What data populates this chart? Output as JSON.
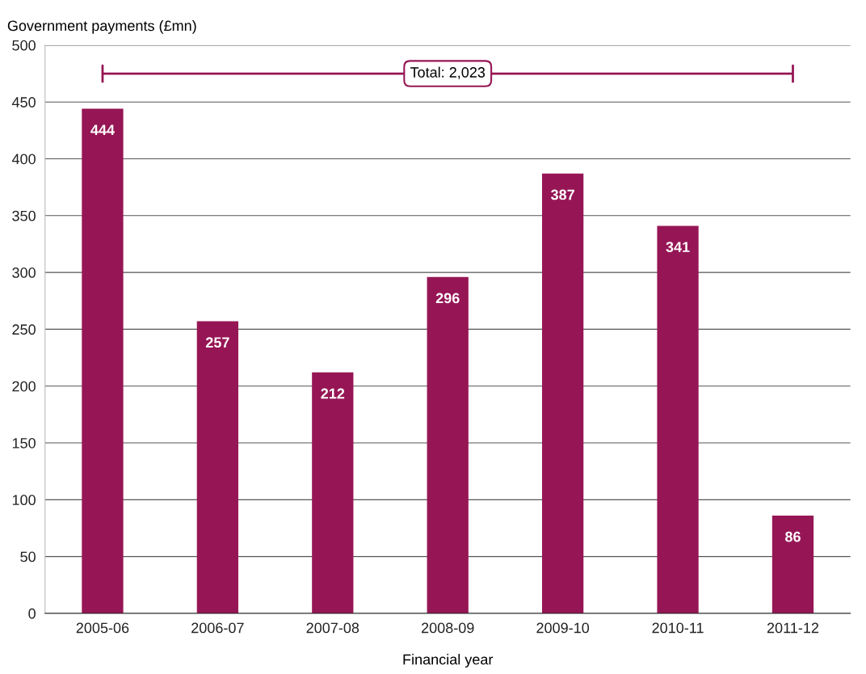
{
  "chart_data": {
    "type": "bar",
    "ylabel": "Government payments (£mn)",
    "xlabel": "Financial year",
    "categories": [
      "2005-06",
      "2006-07",
      "2007-08",
      "2008-09",
      "2009-10",
      "2010-11",
      "2011-12"
    ],
    "values": [
      444,
      257,
      212,
      296,
      387,
      341,
      86
    ],
    "color": "#961655",
    "ylim": [
      0,
      500
    ],
    "yticks": [
      0,
      50,
      100,
      150,
      200,
      250,
      300,
      350,
      400,
      450,
      500
    ],
    "grid": "y",
    "data_labels": true,
    "annotations": [
      "Total: 2,023"
    ]
  }
}
